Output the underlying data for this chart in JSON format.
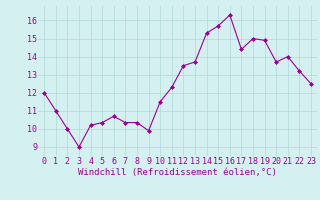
{
  "x": [
    0,
    1,
    2,
    3,
    4,
    5,
    6,
    7,
    8,
    9,
    10,
    11,
    12,
    13,
    14,
    15,
    16,
    17,
    18,
    19,
    20,
    21,
    22,
    23
  ],
  "y": [
    12.0,
    11.0,
    10.0,
    9.0,
    10.2,
    10.35,
    10.7,
    10.35,
    10.35,
    9.9,
    11.5,
    12.3,
    13.5,
    13.7,
    15.3,
    15.7,
    16.3,
    14.4,
    15.0,
    14.9,
    13.7,
    14.0,
    13.2,
    12.5
  ],
  "line_color": "#990099",
  "marker": "D",
  "marker_size": 2.0,
  "bg_color": "#d5f0f0",
  "grid_color": "#b0d8d8",
  "xlabel": "Windchill (Refroidissement éolien,°C)",
  "ylabel_ticks": [
    9,
    10,
    11,
    12,
    13,
    14,
    15,
    16
  ],
  "xticks": [
    0,
    1,
    2,
    3,
    4,
    5,
    6,
    7,
    8,
    9,
    10,
    11,
    12,
    13,
    14,
    15,
    16,
    17,
    18,
    19,
    20,
    21,
    22,
    23
  ],
  "ylim": [
    8.5,
    16.8
  ],
  "xlim": [
    -0.5,
    23.5
  ],
  "xlabel_fontsize": 6.5,
  "tick_fontsize": 6.0,
  "label_color": "#990099",
  "linewidth": 0.8
}
